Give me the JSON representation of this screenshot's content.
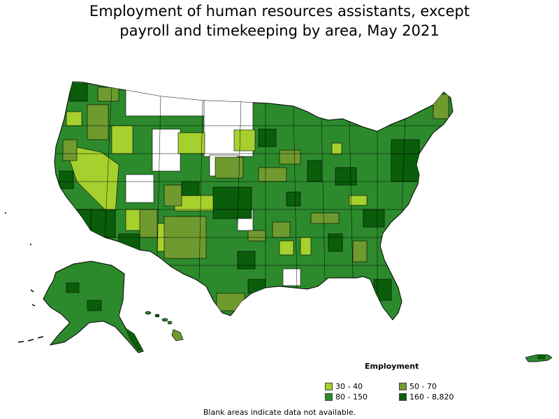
{
  "title": {
    "line1": "Employment of human resources assistants, except",
    "line2": "payroll and timekeeping by area, May 2021"
  },
  "legend": {
    "title": "Employment",
    "items": [
      {
        "label": "30 - 40",
        "color": "#a6d02e"
      },
      {
        "label": "50 - 70",
        "color": "#6f9a2e"
      },
      {
        "label": "80 - 150",
        "color": "#2c8a2c"
      },
      {
        "label": "160 - 8,820",
        "color": "#0a5e0a"
      }
    ]
  },
  "footnote": "Blank areas indicate data not available.",
  "colors": {
    "level1": "#a6d02e",
    "level2": "#6f9a2e",
    "level3": "#2c8a2c",
    "level4": "#0a5e0a",
    "blank": "#ffffff",
    "border": "#000000"
  },
  "map_data": {
    "type": "choropleth",
    "region": "United States (metropolitan and nonmetropolitan areas)",
    "bins": [
      "30 - 40",
      "50 - 70",
      "80 - 150",
      "160 - 8,820"
    ]
  }
}
